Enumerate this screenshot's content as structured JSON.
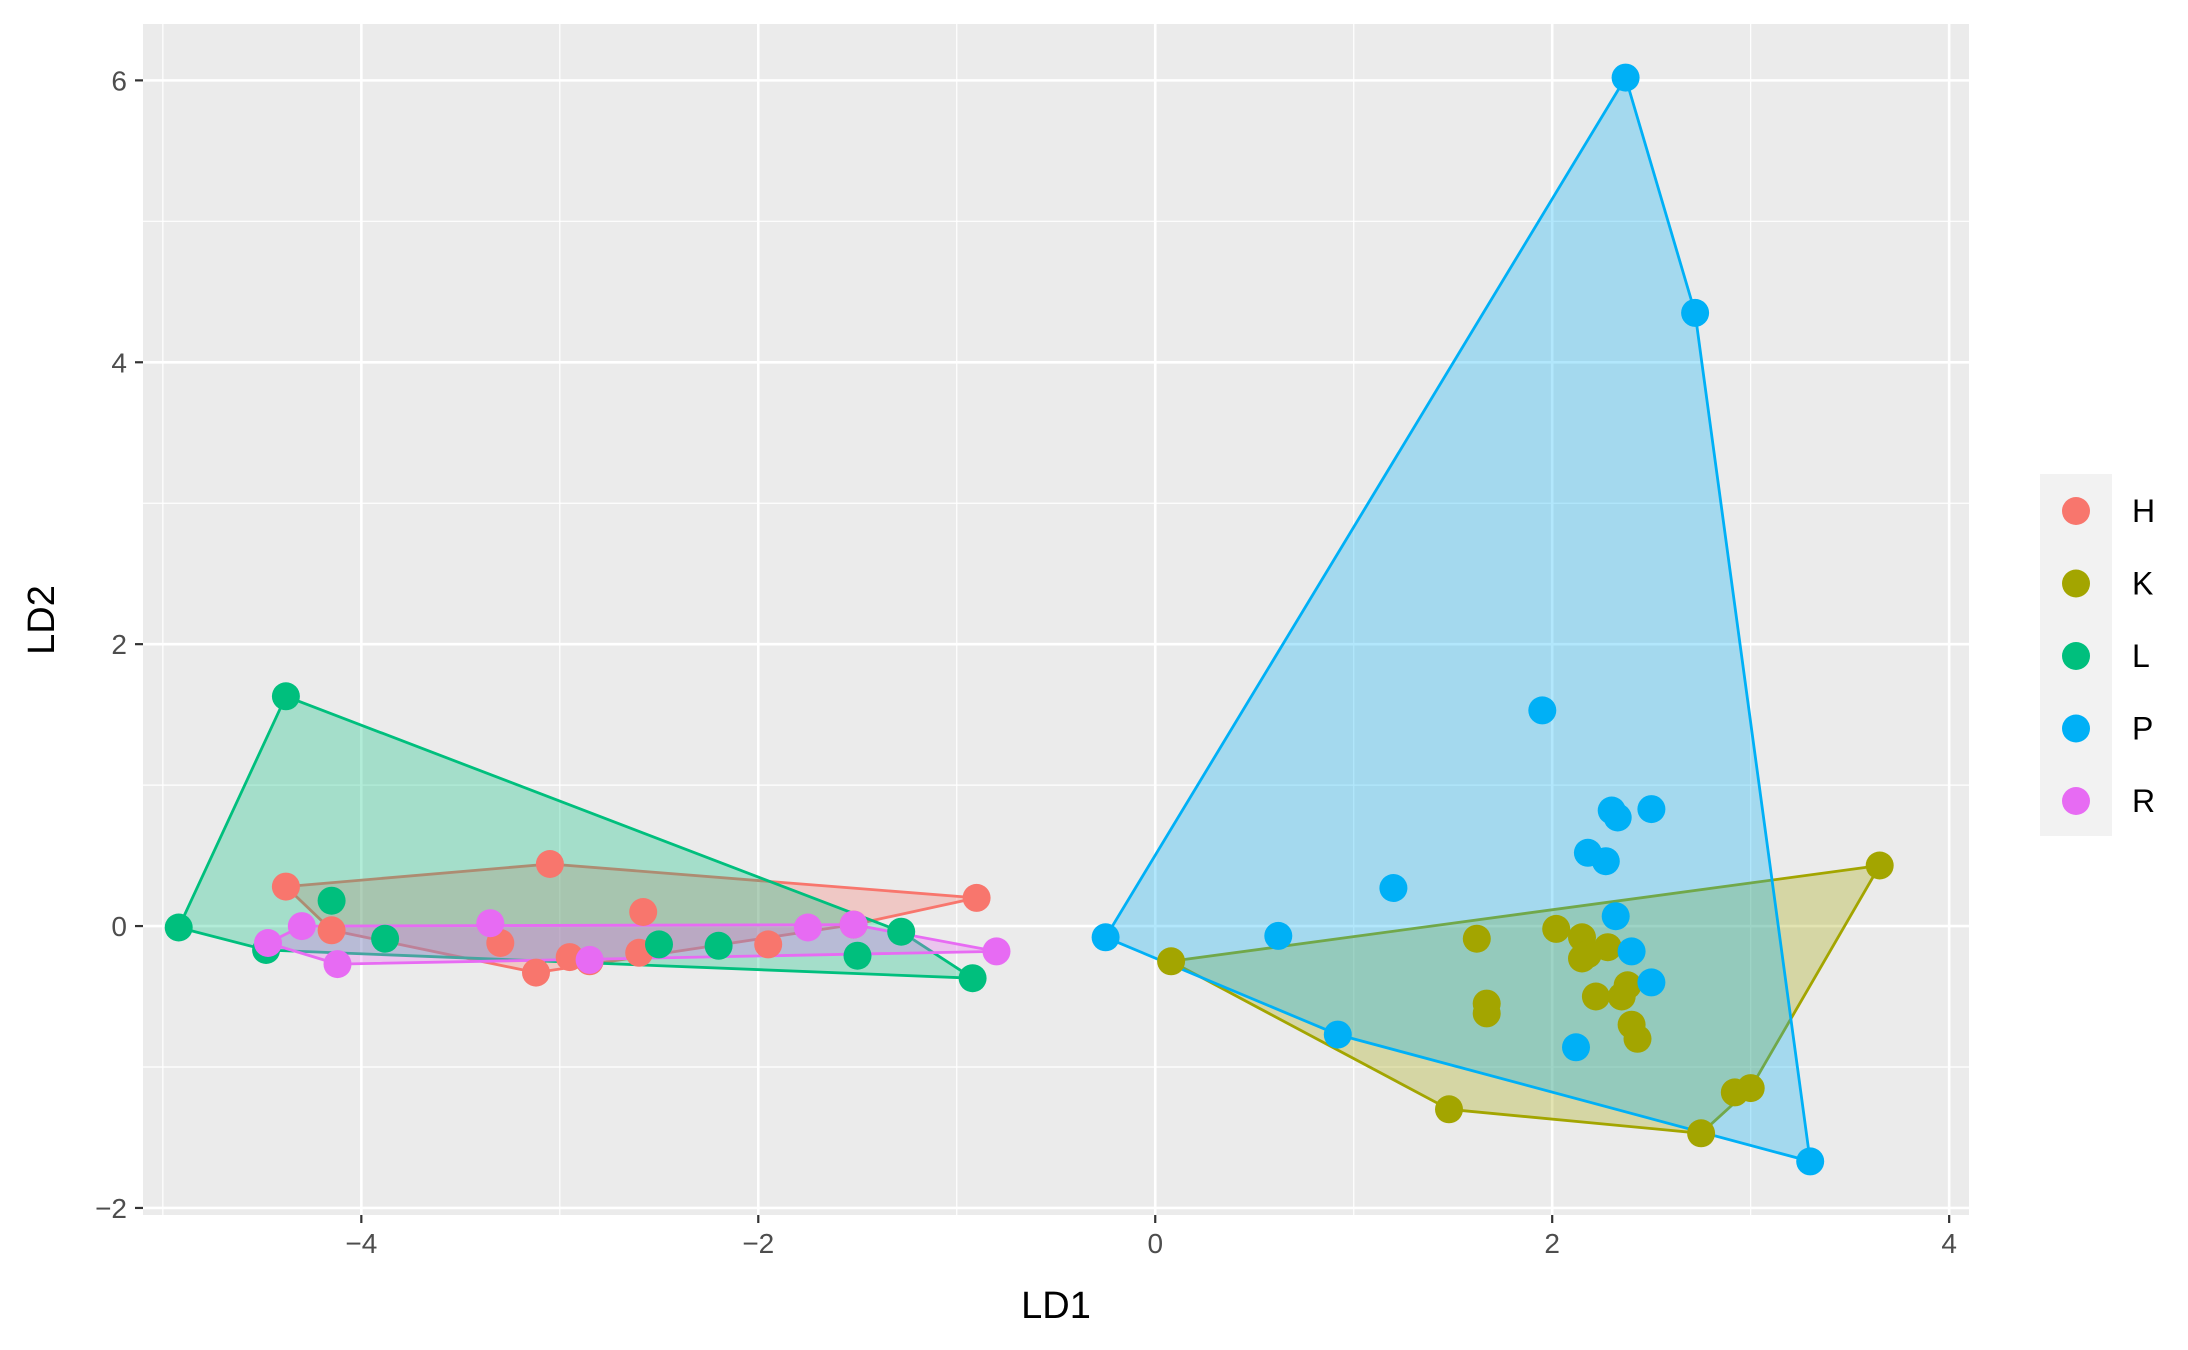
{
  "chart_data": {
    "type": "scatter",
    "xlabel": "LD1",
    "ylabel": "LD2",
    "xlim": [
      -5.1,
      4.1
    ],
    "ylim": [
      -2.05,
      6.4
    ],
    "x_ticks": [
      -4,
      -2,
      0,
      2,
      4
    ],
    "x_tick_labels": [
      "−4",
      "−2",
      "0",
      "2",
      "4"
    ],
    "y_ticks": [
      -2,
      0,
      2,
      4,
      6
    ],
    "y_tick_labels": [
      "−2",
      "0",
      "2",
      "4",
      "6"
    ],
    "grid": true,
    "legend_position": "right",
    "series": [
      {
        "name": "H",
        "color": "#F8766D",
        "points": [
          [
            -4.38,
            0.28
          ],
          [
            -3.05,
            0.44
          ],
          [
            -2.58,
            0.1
          ],
          [
            -0.9,
            0.2
          ],
          [
            -1.52,
            0.01
          ],
          [
            -3.12,
            -0.33
          ],
          [
            -2.95,
            -0.22
          ],
          [
            -4.15,
            -0.03
          ],
          [
            -2.6,
            -0.19
          ],
          [
            -1.95,
            -0.13
          ],
          [
            -3.3,
            -0.12
          ],
          [
            -2.85,
            -0.25
          ]
        ],
        "hull": [
          [
            -4.38,
            0.28
          ],
          [
            -3.05,
            0.44
          ],
          [
            -0.9,
            0.2
          ],
          [
            -1.52,
            0.01
          ],
          [
            -3.12,
            -0.33
          ],
          [
            -4.15,
            -0.03
          ]
        ]
      },
      {
        "name": "K",
        "color": "#A3A500",
        "points": [
          [
            0.08,
            -0.25
          ],
          [
            1.48,
            -1.3
          ],
          [
            2.75,
            -1.47
          ],
          [
            2.92,
            -1.18
          ],
          [
            3.0,
            -1.15
          ],
          [
            3.65,
            0.43
          ],
          [
            1.62,
            -0.09
          ],
          [
            2.02,
            -0.02
          ],
          [
            2.15,
            -0.08
          ],
          [
            2.28,
            -0.15
          ],
          [
            2.18,
            -0.2
          ],
          [
            2.22,
            -0.5
          ],
          [
            2.38,
            -0.42
          ],
          [
            2.4,
            -0.7
          ],
          [
            2.43,
            -0.8
          ],
          [
            1.67,
            -0.55
          ],
          [
            1.67,
            -0.62
          ],
          [
            2.35,
            -0.5
          ],
          [
            2.15,
            -0.23
          ]
        ],
        "hull": [
          [
            0.08,
            -0.25
          ],
          [
            1.48,
            -1.3
          ],
          [
            2.75,
            -1.47
          ],
          [
            3.0,
            -1.15
          ],
          [
            3.65,
            0.43
          ]
        ]
      },
      {
        "name": "L",
        "color": "#00BF7D",
        "points": [
          [
            -4.92,
            -0.01
          ],
          [
            -4.38,
            1.63
          ],
          [
            -0.92,
            -0.37
          ],
          [
            -4.48,
            -0.17
          ],
          [
            -4.15,
            0.18
          ],
          [
            -3.88,
            -0.09
          ],
          [
            -2.5,
            -0.13
          ],
          [
            -2.2,
            -0.14
          ],
          [
            -1.5,
            -0.21
          ],
          [
            -1.28,
            -0.04
          ]
        ],
        "hull": [
          [
            -4.92,
            -0.01
          ],
          [
            -4.38,
            1.63
          ],
          [
            -1.28,
            -0.04
          ],
          [
            -0.92,
            -0.37
          ],
          [
            -4.48,
            -0.17
          ]
        ]
      },
      {
        "name": "P",
        "color": "#00B0F6",
        "points": [
          [
            -0.25,
            -0.08
          ],
          [
            2.37,
            6.02
          ],
          [
            2.72,
            4.35
          ],
          [
            3.3,
            -1.67
          ],
          [
            0.62,
            -0.07
          ],
          [
            0.92,
            -0.77
          ],
          [
            1.2,
            0.27
          ],
          [
            1.95,
            1.53
          ],
          [
            2.18,
            0.52
          ],
          [
            2.27,
            0.46
          ],
          [
            2.3,
            0.82
          ],
          [
            2.33,
            0.77
          ],
          [
            2.5,
            0.83
          ],
          [
            2.32,
            0.07
          ],
          [
            2.4,
            -0.18
          ],
          [
            2.5,
            -0.4
          ],
          [
            2.12,
            -0.86
          ]
        ],
        "hull": [
          [
            -0.25,
            -0.08
          ],
          [
            2.37,
            6.02
          ],
          [
            2.72,
            4.35
          ],
          [
            3.3,
            -1.67
          ],
          [
            0.92,
            -0.77
          ]
        ]
      },
      {
        "name": "R",
        "color": "#E76BF3",
        "points": [
          [
            -4.47,
            -0.12
          ],
          [
            -4.3,
            0.0
          ],
          [
            -4.12,
            -0.27
          ],
          [
            -3.35,
            0.02
          ],
          [
            -2.85,
            -0.24
          ],
          [
            -1.75,
            -0.01
          ],
          [
            -1.52,
            0.01
          ],
          [
            -0.8,
            -0.18
          ]
        ],
        "hull": [
          [
            -4.47,
            -0.12
          ],
          [
            -4.3,
            0.0
          ],
          [
            -1.52,
            0.01
          ],
          [
            -0.8,
            -0.18
          ],
          [
            -4.12,
            -0.27
          ]
        ]
      }
    ]
  }
}
